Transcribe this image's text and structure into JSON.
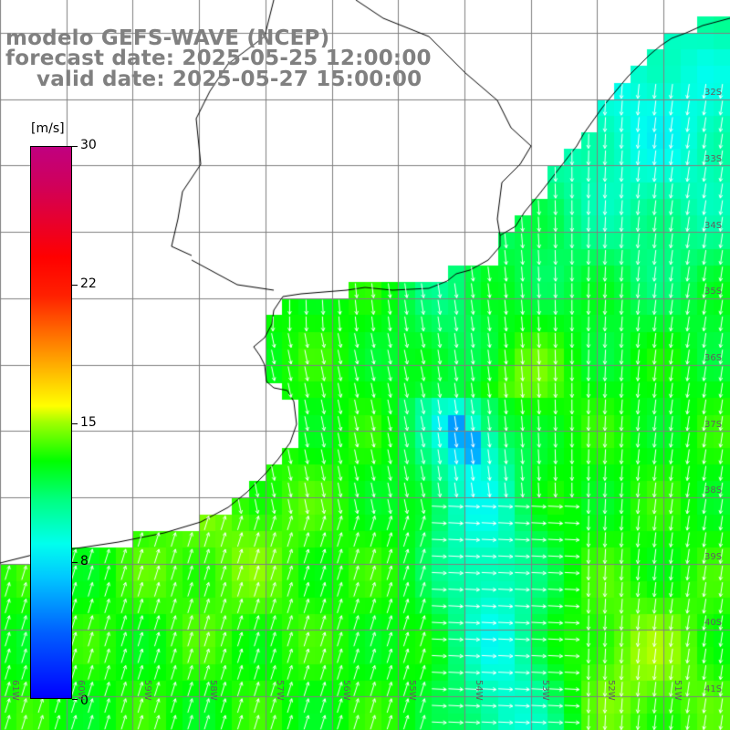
{
  "title": {
    "line1": "modelo GEFS-WAVE (NCEP)",
    "line2": "forecast date: 2025-05-25 12:00:00",
    "line3": "valid date: 2025-05-27 15:00:00"
  },
  "colorbar": {
    "unit": "[m/s]",
    "min": 0,
    "max": 30,
    "tick_labels": [
      "30",
      "22",
      "15",
      "8",
      "0"
    ],
    "tick_values": [
      30,
      22,
      15,
      8,
      0
    ]
  },
  "axes": {
    "lon_labels": [
      "61W",
      "60W",
      "59W",
      "58W",
      "57W",
      "56W",
      "55W",
      "54W",
      "53W",
      "52W",
      "51W"
    ],
    "lat_labels": [
      "32S",
      "33S",
      "34S",
      "35S",
      "36S",
      "37S",
      "38S",
      "39S",
      "40S",
      "41S"
    ]
  },
  "colors": {
    "land": "#ffffff",
    "grid": "#808080",
    "coast": "#000000",
    "title": "#808080",
    "arrows": "#ffffff"
  }
}
